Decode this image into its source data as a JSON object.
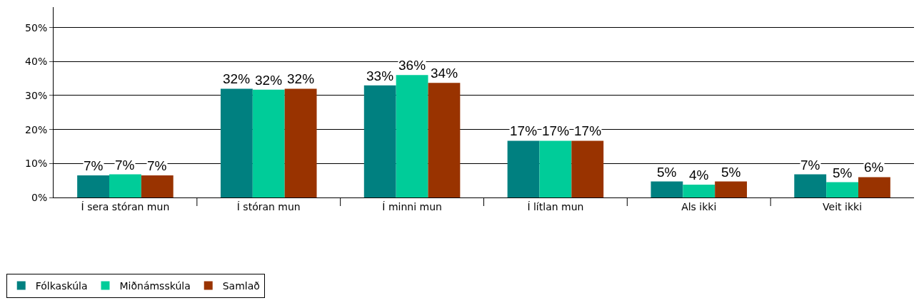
{
  "chart_data": {
    "type": "bar",
    "categories": [
      "Í sera stóran mun",
      "Í stóran mun",
      "Í minni mun",
      "Í lítlan mun",
      "Als ikki",
      "Veit ikki"
    ],
    "series": [
      {
        "name": "Fólkaskúla",
        "color": "#008080",
        "values": [
          6.5,
          32,
          33,
          16.7,
          4.7,
          6.8
        ],
        "value_labels": [
          "7%",
          "32%",
          "33%",
          "17%",
          "5%",
          "7%"
        ]
      },
      {
        "name": "Miðnámsskúla",
        "color": "#00cc99",
        "values": [
          6.8,
          31.7,
          36,
          16.7,
          3.8,
          4.5
        ],
        "value_labels": [
          "7%",
          "32%",
          "36%",
          "17%",
          "4%",
          "5%"
        ]
      },
      {
        "name": "Samlað",
        "color": "#993300",
        "values": [
          6.5,
          32,
          33.7,
          16.7,
          4.7,
          6
        ],
        "value_labels": [
          "7%",
          "32%",
          "34%",
          "17%",
          "5%",
          "6%"
        ]
      }
    ],
    "ylim": [
      0,
      56
    ],
    "yticks": [
      {
        "value": 0,
        "label": "0%"
      },
      {
        "value": 10,
        "label": "10%"
      },
      {
        "value": 20,
        "label": "20%"
      },
      {
        "value": 30,
        "label": "30%"
      },
      {
        "value": 40,
        "label": "40%"
      },
      {
        "value": 50,
        "label": "50%"
      }
    ],
    "grid": "y",
    "legend": "bottom left"
  }
}
